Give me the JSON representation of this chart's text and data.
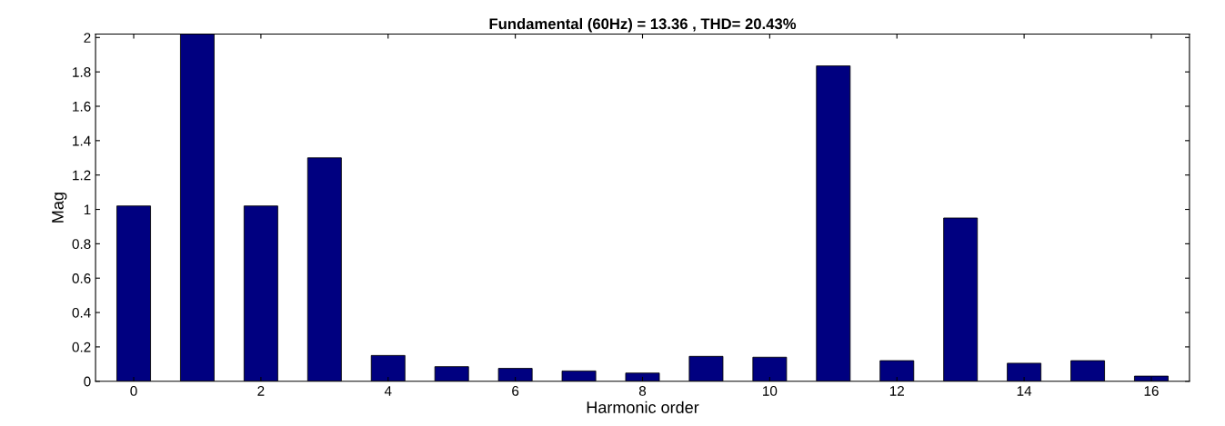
{
  "chart_data": {
    "type": "bar",
    "title": "Fundamental (60Hz) = 13.36 , THD= 20.43%",
    "xlabel": "Harmonic order",
    "ylabel": "Mag",
    "x": [
      0,
      1,
      2,
      3,
      4,
      5,
      6,
      7,
      8,
      9,
      10,
      11,
      12,
      13,
      14,
      15,
      16
    ],
    "values": [
      1.02,
      2.02,
      1.02,
      1.3,
      0.15,
      0.085,
      0.075,
      0.06,
      0.048,
      0.145,
      0.14,
      1.835,
      0.12,
      0.95,
      0.105,
      0.12,
      0.03
    ],
    "color": "#000080",
    "xlim": [
      -0.6,
      16.6
    ],
    "xticks": [
      0,
      2,
      4,
      6,
      8,
      10,
      12,
      14,
      16
    ],
    "ylim": [
      0,
      2.02
    ],
    "yticks": [
      0,
      0.2,
      0.4,
      0.6,
      0.8,
      1,
      1.2,
      1.4,
      1.6,
      1.8,
      2
    ],
    "grid": false,
    "legend": false
  }
}
